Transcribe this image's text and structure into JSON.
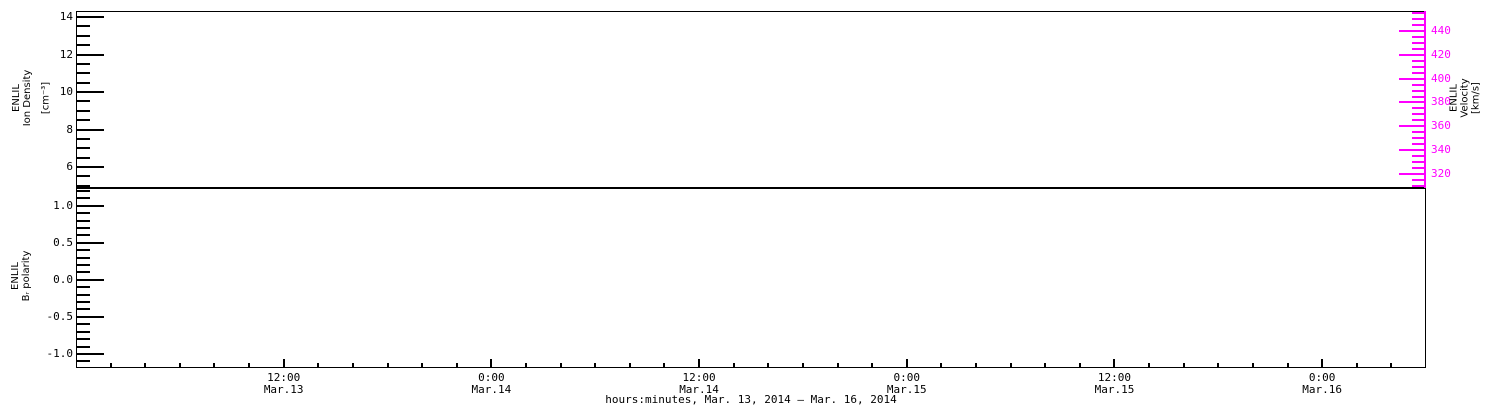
{
  "figure": {
    "background": "#ffffff",
    "axis_color": "#000000",
    "velocity_color": "#ff00ff",
    "description": "ENLIL model time-series plot, two stacked panels, no data traces plotted"
  },
  "chart_data": [
    {
      "type": "line",
      "panel": "ion_density_velocity",
      "series": [],
      "grid": false,
      "legend": "none",
      "y_left": {
        "title_lines": [
          "ENLIL",
          "Ion Density"
        ],
        "unit": "[cm⁻³]",
        "ylim": [
          4.88,
          14.32
        ],
        "major_ticks": [
          6,
          8,
          10,
          12,
          14
        ],
        "major_labels": [
          "6",
          "8",
          "10",
          "12",
          "14"
        ],
        "minor_step": 0.5
      },
      "y_right": {
        "title_lines": [
          "ENLIL",
          "Velocity",
          "[km/s]"
        ],
        "ylim": [
          308,
          457
        ],
        "major_ticks": [
          320,
          340,
          360,
          380,
          400,
          420,
          440
        ],
        "major_labels": [
          "320",
          "340",
          "360",
          "380",
          "400",
          "420",
          "440"
        ],
        "minor_step": 5,
        "color": "#ff00ff"
      }
    },
    {
      "type": "line",
      "panel": "b_polarity",
      "series": [],
      "grid": false,
      "legend": "none",
      "y_left": {
        "title_lines": [
          "ENLIL",
          "Bᵣ polarity"
        ],
        "ylim": [
          -1.19,
          1.24
        ],
        "major_ticks": [
          -1.0,
          -0.5,
          0.0,
          0.5,
          1.0
        ],
        "major_labels": [
          "-1.0",
          "-0.5",
          "0.0",
          "0.5",
          "1.0"
        ],
        "minor_step": 0.1
      },
      "x_axis": {
        "label": "hours:minutes, Mar. 13, 2014 – Mar. 16, 2014",
        "xlim_hours": [
          0,
          78
        ],
        "major_ticks_hours": [
          12,
          24,
          36,
          48,
          60,
          72
        ],
        "major_tick_labels": [
          [
            "12:00",
            "Mar.13"
          ],
          [
            "0:00",
            "Mar.14"
          ],
          [
            "12:00",
            "Mar.14"
          ],
          [
            "0:00",
            "Mar.15"
          ],
          [
            "12:00",
            "Mar.15"
          ],
          [
            "0:00",
            "Mar.16"
          ]
        ],
        "minor_step_hours": 2
      }
    }
  ]
}
